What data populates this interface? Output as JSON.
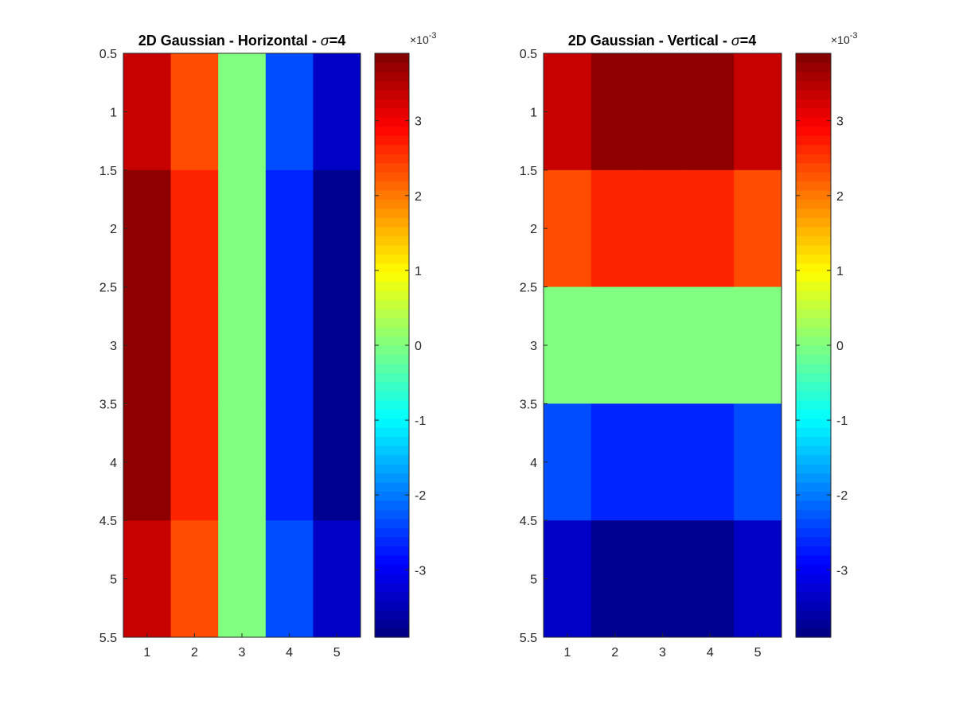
{
  "chart_data": [
    {
      "type": "heatmap",
      "title": "2D Gaussian - Horizontal - σ=4",
      "title_prefix": "2D Gaussian - Horizontal - ",
      "title_symbol": "σ",
      "title_suffix": "=4",
      "x_ticks": [
        "1",
        "2",
        "3",
        "4",
        "5"
      ],
      "y_ticks": [
        "0.5",
        "1",
        "1.5",
        "2",
        "2.5",
        "3",
        "3.5",
        "4",
        "4.5",
        "5",
        "5.5"
      ],
      "xlim": [
        0.5,
        5.5
      ],
      "ylim": [
        0.5,
        5.5
      ],
      "y_reversed": true,
      "colormap": "jet",
      "clim": [
        -0.0039,
        0.0039
      ],
      "colorbar": {
        "ticks": [
          "-3",
          "-2",
          "-1",
          "0",
          "1",
          "2",
          "3"
        ],
        "tick_values": [
          -3,
          -2,
          -1,
          0,
          1,
          2,
          3
        ],
        "multiplier": "×10",
        "exponent": "-3"
      },
      "matrix": [
        [
          0.00335,
          0.00234,
          0,
          -0.00234,
          -0.00335
        ],
        [
          0.00379,
          0.00265,
          0,
          -0.00265,
          -0.00379
        ],
        [
          0.00379,
          0.00265,
          0,
          -0.00265,
          -0.00379
        ],
        [
          0.00379,
          0.00265,
          0,
          -0.00265,
          -0.00379
        ],
        [
          0.00335,
          0.00234,
          0,
          -0.00234,
          -0.00335
        ]
      ]
    },
    {
      "type": "heatmap",
      "title": "2D Gaussian - Vertical - σ=4",
      "title_prefix": "2D Gaussian - Vertical - ",
      "title_symbol": "σ",
      "title_suffix": "=4",
      "x_ticks": [
        "1",
        "2",
        "3",
        "4",
        "5"
      ],
      "y_ticks": [
        "0.5",
        "1",
        "1.5",
        "2",
        "2.5",
        "3",
        "3.5",
        "4",
        "4.5",
        "5",
        "5.5"
      ],
      "xlim": [
        0.5,
        5.5
      ],
      "ylim": [
        0.5,
        5.5
      ],
      "y_reversed": true,
      "colormap": "jet",
      "clim": [
        -0.0039,
        0.0039
      ],
      "colorbar": {
        "ticks": [
          "-3",
          "-2",
          "-1",
          "0",
          "1",
          "2",
          "3"
        ],
        "tick_values": [
          -3,
          -2,
          -1,
          0,
          1,
          2,
          3
        ],
        "multiplier": "×10",
        "exponent": "-3"
      },
      "matrix": [
        [
          0.00335,
          0.00379,
          0.00379,
          0.00379,
          0.00335
        ],
        [
          0.00234,
          0.00265,
          0.00265,
          0.00265,
          0.00234
        ],
        [
          0,
          0,
          0,
          0,
          0
        ],
        [
          -0.00234,
          -0.00265,
          -0.00265,
          -0.00265,
          -0.00234
        ],
        [
          -0.00335,
          -0.00379,
          -0.00379,
          -0.00379,
          -0.00335
        ]
      ]
    }
  ]
}
